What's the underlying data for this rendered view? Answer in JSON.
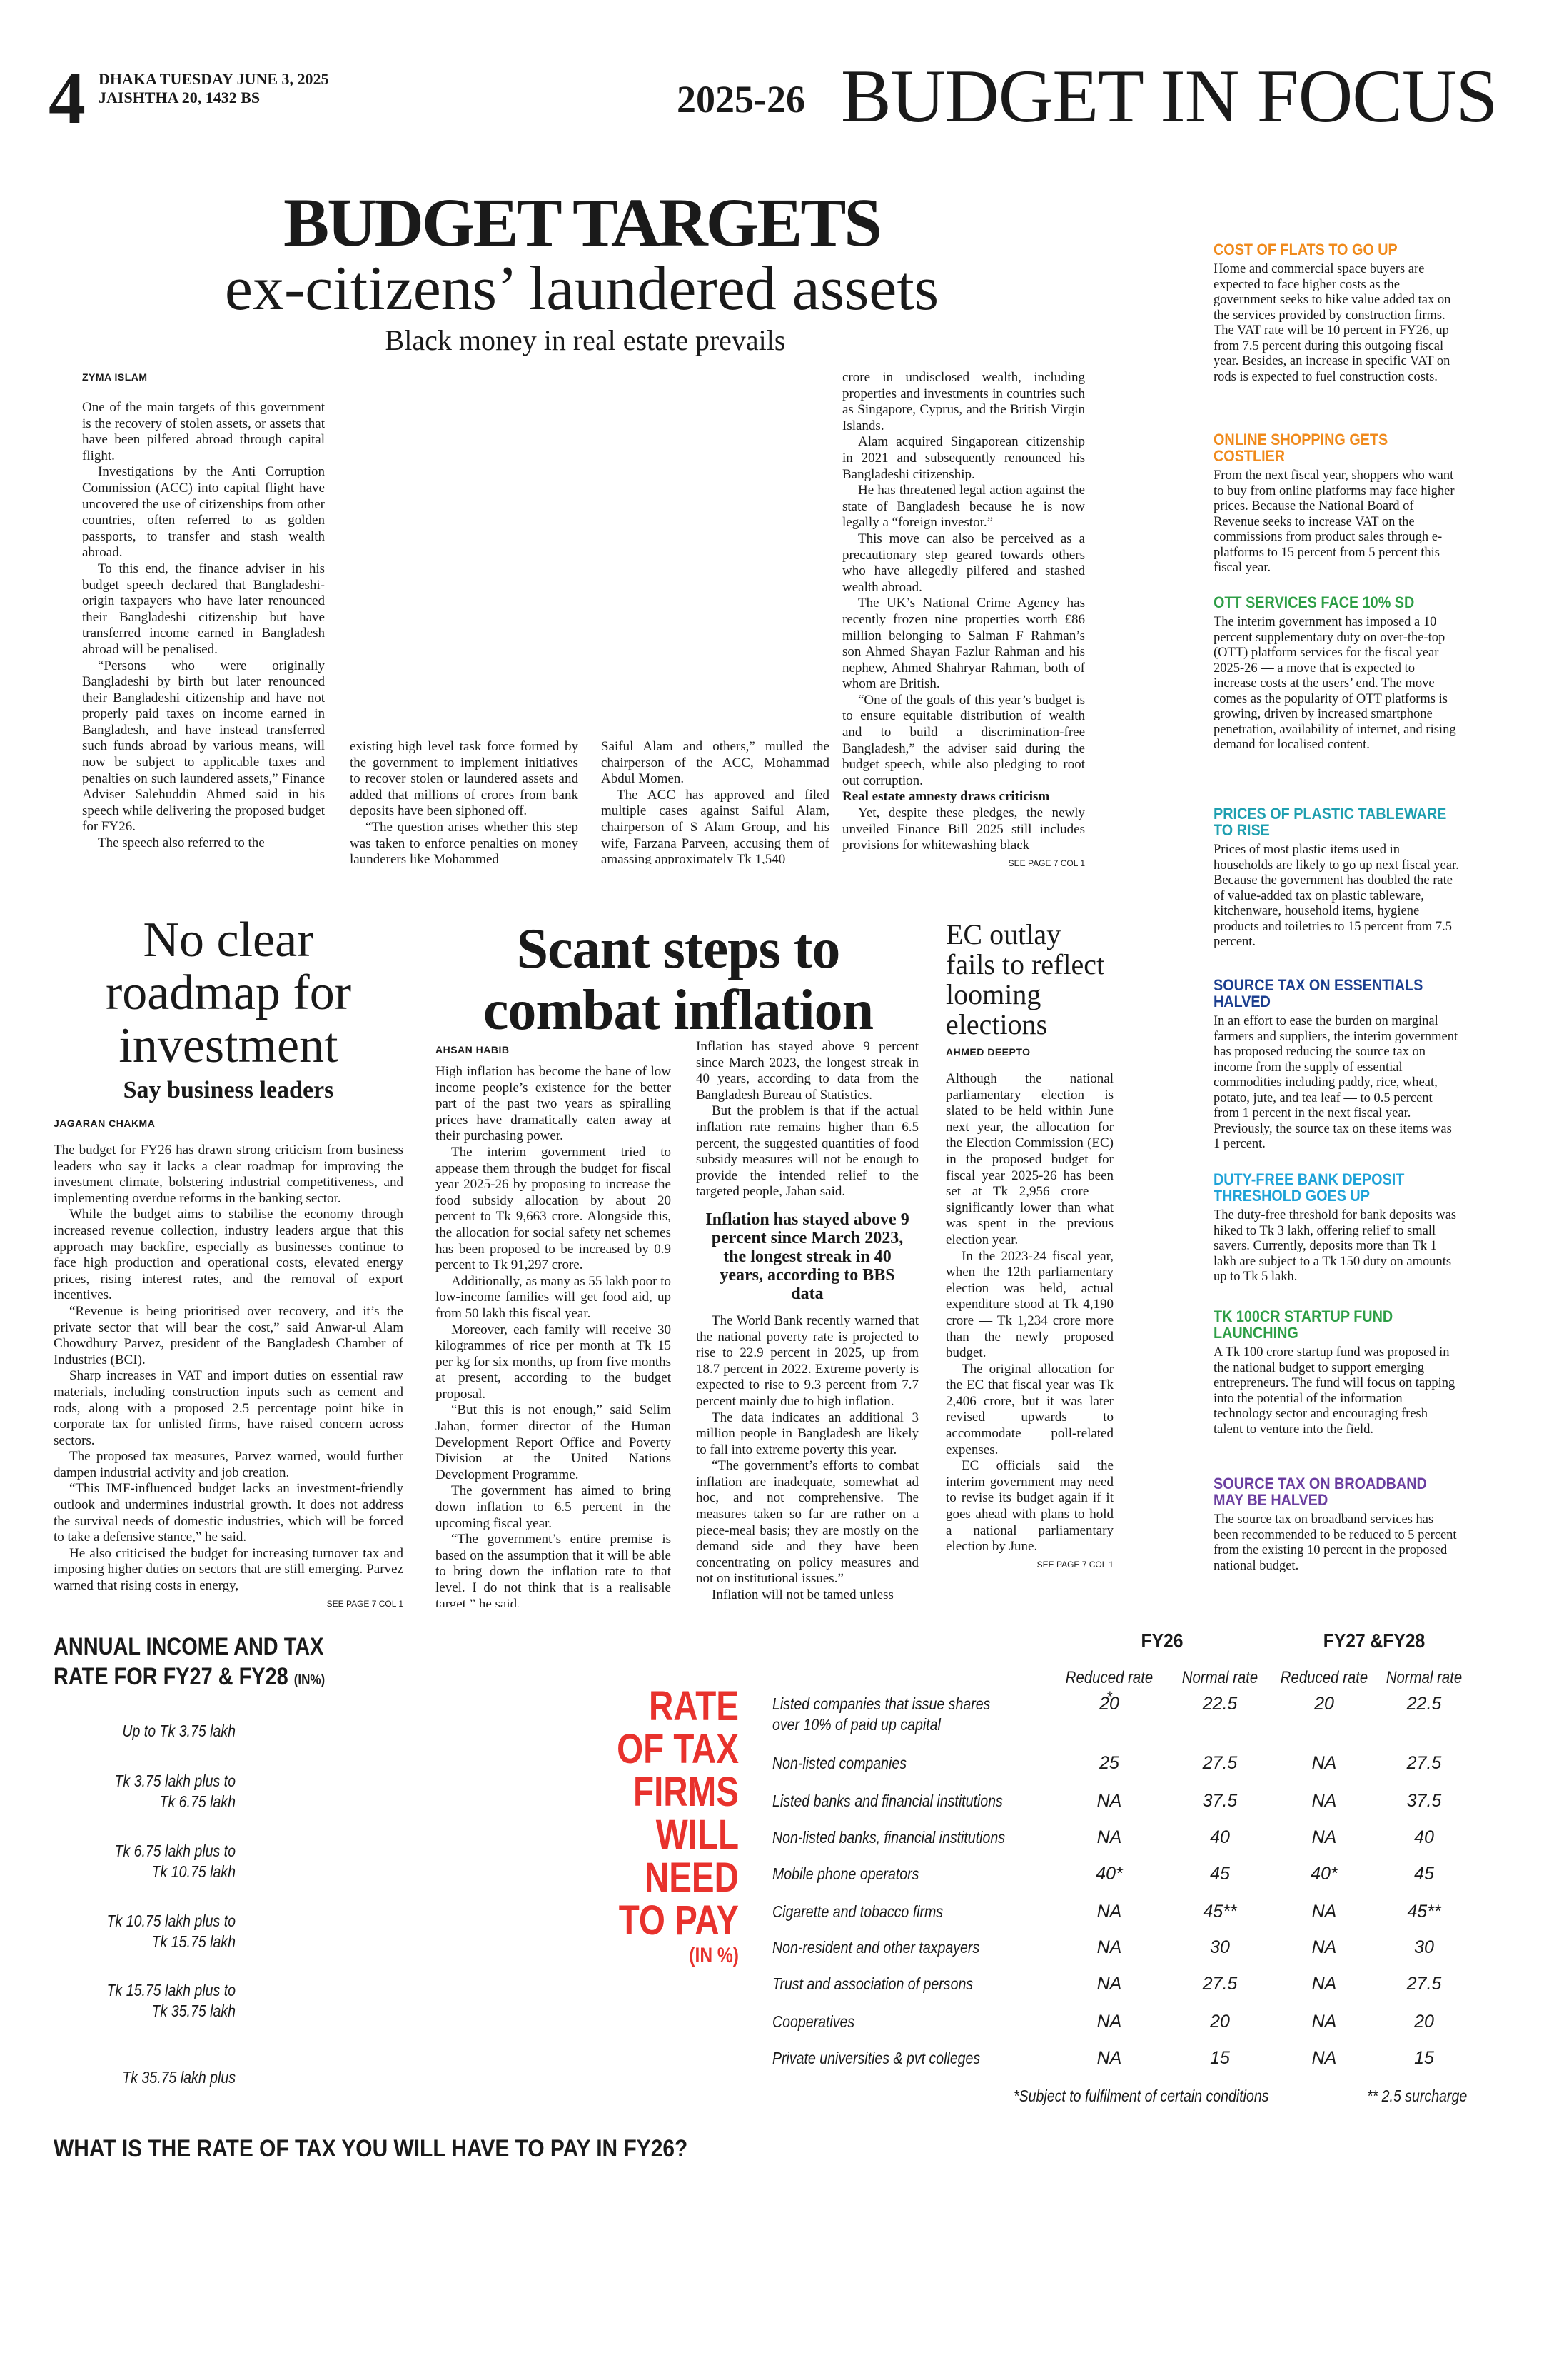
{
  "header": {
    "page_number": "4",
    "dateline": [
      "DHAKA TUESDAY JUNE 3, 2025",
      "JAISHTHA 20, 1432 BS"
    ],
    "year": "2025-26",
    "title": "BUDGET IN FOCUS"
  },
  "main_story": {
    "kicker": "BUDGET TARGETS",
    "headline": "ex-citizens’ laundered assets",
    "deck": "Black money in real estate prevails",
    "byline": "ZYMA ISLAM",
    "columns": [
      [
        "One of the main targets of this government is the recovery of stolen assets, or assets that have been pilfered abroad through capital flight.",
        "Investigations by the Anti Corruption Commission (ACC) into capital flight have uncovered the use of citizenships from other countries, often referred to as golden passports, to transfer and stash wealth abroad.",
        "To this end, the finance adviser in his budget speech declared that Bangladeshi-origin taxpayers who have later renounced their Bangladeshi citizenship but have transferred income earned in Bangladesh abroad will be penalised.",
        "“Persons who were originally Bangladeshi by birth but later renounced their Bangladeshi citizenship and have not properly paid taxes on income earned in Bangladesh, and have instead transferred such funds abroad by various means, will now be subject to applicable taxes and penalties on such laundered assets,” Finance Adviser Salehuddin Ahmed said in his speech while delivering the proposed budget for FY26.",
        "The speech also referred to the"
      ],
      [
        "existing high level task force formed by the government to implement initiatives to recover stolen or laundered assets and added that millions of crores from bank deposits have been siphoned off.",
        "“The question arises whether this step was taken to enforce penalties on money launderers like Mohammed"
      ],
      [
        "Saiful Alam and others,” mulled the chairperson of the ACC, Mohammad Abdul Momen.",
        "The ACC has approved and filed multiple cases against Saiful Alam, chairperson of S Alam Group, and his wife, Farzana Parveen, accusing them of amassing approximately Tk 1,540"
      ],
      [
        "crore in undisclosed wealth, including properties and investments in countries such as Singapore, Cyprus, and the British Virgin Islands.",
        "Alam acquired Singaporean citizenship in 2021 and subsequently renounced his Bangladeshi citizenship.",
        "He has threatened legal action against the state of Bangladesh because he is now legally a “foreign investor.”",
        "This move can also be perceived as a precautionary step geared towards others who have allegedly pilfered and stashed wealth abroad.",
        "The UK’s National Crime Agency has recently frozen nine properties worth £86 million belonging to Salman F Rahman’s son Ahmed Shayan Fazlur Rahman and his nephew, Ahmed Shahryar Rahman, both of whom are British.",
        "“One of the goals of this year’s budget is to ensure equitable distribution of wealth and to build a discrimination-free Bangladesh,” the adviser said during the budget speech, while also pledging to root out corruption."
      ]
    ],
    "subhead": "Real estate amnesty draws criticism",
    "after_subhead": [
      "Yet, despite these pledges, the newly unveiled Finance Bill 2025 still includes provisions for whitewashing black"
    ],
    "jump": "SEE PAGE 7 COL 1"
  },
  "sidebar": [
    {
      "headline": "COST OF FLATS TO GO UP",
      "body": "Home and commercial space buyers are expected to face higher costs as the government seeks to hike value added tax on the services provided by construction firms. The VAT rate will be 10 percent in FY26, up from 7.5 percent during this outgoing fiscal year. Besides, an increase in specific VAT on rods is expected to fuel construction costs."
    },
    {
      "headline": "ONLINE SHOPPING GETS COSTLIER",
      "body": "From the next fiscal year, shoppers who want to buy from online platforms may face higher prices. Because the National Board of Revenue seeks to increase VAT on the commissions from product sales through e-platforms to 15 percent from 5 percent this fiscal year."
    },
    {
      "headline": "OTT SERVICES FACE 10% SD",
      "body": "The interim government has imposed a 10 percent supplementary duty on over-the-top (OTT) platform services for the fiscal year 2025-26 — a move that is expected to increase costs at the users’ end. The move comes as the popularity of OTT platforms is growing, driven by increased smartphone penetration, availability of internet, and rising demand for localised content."
    },
    {
      "headline": "PRICES OF PLASTIC TABLEWARE TO RISE",
      "body": "Prices of most plastic items used in households are likely to go up next fiscal year. Because the government has doubled the rate of value-added tax on plastic tableware, kitchenware, household items, hygiene products and toiletries to 15 percent from 7.5 percent."
    },
    {
      "headline": "SOURCE TAX ON ESSENTIALS HALVED",
      "body": "In an effort to ease the burden on marginal farmers and suppliers, the interim government has proposed reducing the source tax on income from the supply of essential commodities including paddy, rice, wheat, potato, jute, and tea leaf — to 0.5 percent from 1 percent in the next fiscal year. Previously, the source tax on these items was 1 percent."
    },
    {
      "headline": "DUTY-FREE BANK DEPOSIT THRESHOLD GOES UP",
      "body": "The duty-free threshold for bank deposits was hiked to Tk 3 lakh, offering relief to small savers. Currently, deposits more than Tk 1 lakh are subject to a Tk 150 duty on amounts up to Tk 5 lakh."
    },
    {
      "headline": "TK 100CR STARTUP FUND LAUNCHING",
      "body": "A Tk 100 crore startup fund was proposed in the national budget to support emerging entrepreneurs. The fund will focus on tapping into the potential of the information technology sector and encouraging fresh talent to venture into the field."
    },
    {
      "headline": "SOURCE TAX ON BROADBAND MAY BE HALVED",
      "body": "The source tax on broadband services has been recommended to be reduced to 5 percent from the existing 10 percent in the proposed national budget."
    }
  ],
  "investment_story": {
    "headline": "No clear roadmap for investment",
    "deck": "Say business leaders",
    "byline": "JAGARAN CHAKMA",
    "paragraphs": [
      "The budget for FY26 has drawn strong criticism from business leaders who say it lacks a clear roadmap for improving the investment climate, bolstering industrial competitiveness, and implementing overdue reforms in the banking sector.",
      "While the budget aims to stabilise the economy through increased revenue collection, industry leaders argue that this approach may backfire, especially as businesses continue to face high production and operational costs, elevated energy prices, rising interest rates, and the removal of export incentives.",
      "“Revenue is being prioritised over recovery, and it’s the private sector that will bear the cost,” said Anwar-ul Alam Chowdhury Parvez, president of the Bangladesh Chamber of Industries (BCI).",
      "Sharp increases in VAT and import duties on essential raw materials, including construction inputs such as cement and rods, along with a proposed 2.5 percentage point hike in corporate tax for unlisted firms, have raised concern across sectors.",
      "The proposed tax measures, Parvez warned, would further dampen industrial activity and job creation.",
      "“This IMF-influenced budget lacks an investment-friendly outlook and undermines industrial growth. It does not address the survival needs of domestic industries, which will be forced to take a defensive stance,” he said.",
      "He also criticised the budget for increasing turnover tax and imposing higher duties on sectors that are still emerging. Parvez warned that rising costs in energy,"
    ],
    "jump": "SEE PAGE 7 COL 1"
  },
  "inflation_story": {
    "headline_lines": [
      "Scant steps to",
      "combat inflation"
    ],
    "byline": "AHSAN HABIB",
    "columns": [
      [
        "High inflation has become the bane of low income people’s existence for the better part of the past two years as spiralling prices have dramatically eaten away at their purchasing power.",
        "The interim government tried to appease them through the budget for fiscal year 2025-26 by proposing to increase the food subsidy allocation by about 20 percent to Tk 9,663 crore. Alongside this, the allocation for social safety net schemes has been proposed to be increased by 0.9 percent to Tk 91,297 crore.",
        "Additionally, as many as 55 lakh poor to low-income families will get food aid, up from 50 lakh this fiscal year.",
        "Moreover, each family will receive 30 kilogrammes of rice per month at Tk 15 per kg for six months, up from five months at present, according to the budget proposal.",
        "“But this is not enough,” said Selim Jahan, former director of the Human Development Report Office and Poverty Division at the United Nations Development Programme.",
        "The government has aimed to bring down inflation to 6.5 percent in the upcoming fiscal year.",
        "“The government’s entire premise is based on the assumption that it will be able to bring down the inflation rate to that level. I do not think that is a realisable target,” he said."
      ],
      [
        "Inflation has stayed above 9 percent since March 2023, the longest streak in 40 years, according to data from the Bangladesh Bureau of Statistics.",
        "But the problem is that if the actual inflation rate remains higher than 6.5 percent, the suggested quantities of food subsidy measures will not be enough to provide the intended relief to the targeted people, Jahan said."
      ]
    ],
    "pullquote": "Inflation has stayed above 9 percent since March 2023, the longest streak in 40 years, according to BBS data",
    "after_pullquote": [
      "The World Bank recently warned that the national poverty rate is projected to rise to 22.9 percent in 2025, up from 18.7 percent in 2022. Extreme poverty is expected to rise to 9.3 percent from 7.7 percent mainly due to high inflation.",
      "The data indicates an additional 3 million people in Bangladesh are likely to fall into extreme poverty this year.",
      "“The government’s efforts to combat inflation are inadequate, somewhat ad hoc, and not comprehensive. The measures taken so far are rather on a piece-meal basis; they are mostly on the demand side and they have been concentrating on policy measures and not on institutional issues.”",
      "Inflation will not be tamed unless"
    ],
    "jump": "SEE PAGE 7 COL 3"
  },
  "election_story": {
    "headline_lines": [
      "EC outlay",
      "fails to reflect",
      "looming",
      "elections"
    ],
    "byline": "AHMED DEEPTO",
    "paragraphs": [
      "Although the national parliamentary election is slated to be held within June next year, the allocation for the Election Commission (EC) in the proposed budget for fiscal year 2025-26 has been set at Tk 2,956 crore — significantly lower than what was spent in the previous election year.",
      "In the 2023-24 fiscal year, when the 12th parliamentary election was held, actual expenditure stood at Tk 4,190 crore — Tk 1,234 crore more than the newly proposed budget.",
      "The original allocation for the EC that fiscal year was Tk 2,406 crore, but it was later revised upwards to accommodate poll-related expenses.",
      "EC officials said the interim government may need to revise its budget again if it goes ahead with plans to hold a national parliamentary election by June."
    ],
    "jump": "SEE PAGE 7 COL 1"
  },
  "income_tax": {
    "title_lines": [
      "ANNUAL INCOME AND TAX",
      "RATE FOR FY27 & FY28"
    ],
    "unit": "(IN%)",
    "brackets": [
      [
        "Up to Tk 3.75 lakh"
      ],
      [
        "Tk 3.75 lakh plus to",
        "Tk 6.75 lakh"
      ],
      [
        "Tk 6.75 lakh plus to",
        "Tk 10.75 lakh"
      ],
      [
        "Tk 10.75 lakh plus to",
        "Tk 15.75 lakh"
      ],
      [
        "Tk 15.75 lakh plus to",
        "Tk 35.75 lakh"
      ],
      [
        "Tk 35.75 lakh plus"
      ]
    ],
    "question": "WHAT IS THE RATE OF TAX YOU WILL HAVE TO PAY IN FY26?"
  },
  "firm_tax": {
    "title_lines": [
      "RATE",
      "OF TAX",
      "FIRMS",
      "WILL NEED",
      "TO PAY"
    ],
    "unit": "(IN %)",
    "groups": [
      "FY26",
      "FY27 &FY28"
    ],
    "subheaders": [
      "Reduced rate *",
      "Normal rate",
      "Reduced rate",
      "Normal rate"
    ],
    "rows": [
      [
        "Listed companies that issue shares over 10% of paid up capital",
        "20",
        "22.5",
        "20",
        "22.5"
      ],
      [
        "Non-listed companies",
        "25",
        "27.5",
        "NA",
        "27.5"
      ],
      [
        "Listed banks and financial institutions",
        "NA",
        "37.5",
        "NA",
        "37.5"
      ],
      [
        "Non-listed banks, financial institutions",
        "NA",
        "40",
        "NA",
        "40"
      ],
      [
        "Mobile phone operators",
        "40*",
        "45",
        "40*",
        "45"
      ],
      [
        "Cigarette and tobacco firms",
        "NA",
        "45**",
        "NA",
        "45**"
      ],
      [
        "Non-resident and other taxpayers",
        "NA",
        "30",
        "NA",
        "30"
      ],
      [
        "Trust and association of persons",
        "NA",
        "27.5",
        "NA",
        "27.5"
      ],
      [
        "Cooperatives",
        "NA",
        "20",
        "NA",
        "20"
      ],
      [
        "Private universities & pvt colleges",
        "NA",
        "15",
        "NA",
        "15"
      ]
    ],
    "footnotes": [
      "*Subject to fulfilment of certain conditions",
      "** 2.5 surcharge"
    ]
  }
}
